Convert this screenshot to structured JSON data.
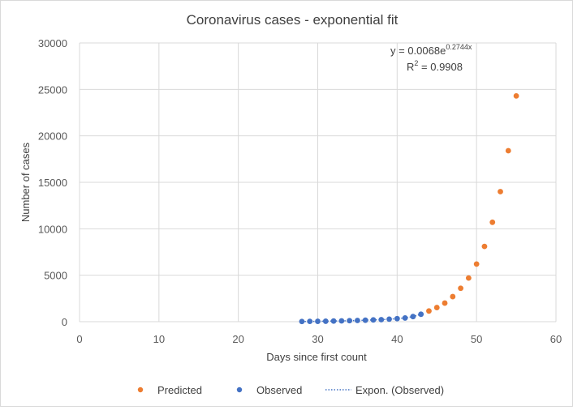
{
  "chart_data": {
    "type": "scatter",
    "title": "Coronavirus cases - exponential  fit",
    "xlabel": "Days since first count",
    "ylabel": "Number of cases",
    "xlim": [
      0,
      60
    ],
    "ylim": [
      0,
      30000
    ],
    "x_ticks": [
      0,
      10,
      20,
      30,
      40,
      50,
      60
    ],
    "y_ticks": [
      0,
      5000,
      10000,
      15000,
      20000,
      25000,
      30000
    ],
    "grid": true,
    "legend_position": "bottom",
    "series": [
      {
        "name": "Predicted",
        "color": "#ED7D31",
        "x": [
          44,
          45,
          46,
          47,
          48,
          49,
          50,
          51,
          52,
          53,
          54,
          55
        ],
        "y": [
          1150,
          1520,
          2000,
          2700,
          3600,
          4700,
          6200,
          8100,
          10700,
          14000,
          18400,
          24300
        ]
      },
      {
        "name": "Observed",
        "color": "#4472C4",
        "x": [
          28,
          29,
          30,
          31,
          32,
          33,
          34,
          35,
          36,
          37,
          38,
          39,
          40,
          41,
          42,
          43
        ],
        "y": [
          20,
          30,
          40,
          50,
          70,
          90,
          110,
          130,
          160,
          190,
          220,
          270,
          330,
          400,
          550,
          800
        ]
      }
    ],
    "trendline": {
      "name": "Expon. (Observed)",
      "color": "#4472C4",
      "style": "dotted",
      "equation_prefix": "y = 0.0068e",
      "equation_exponent": "0.2744x",
      "r2_prefix": "R",
      "r2_power": "2",
      "r2_value": " = 0.9908"
    }
  }
}
